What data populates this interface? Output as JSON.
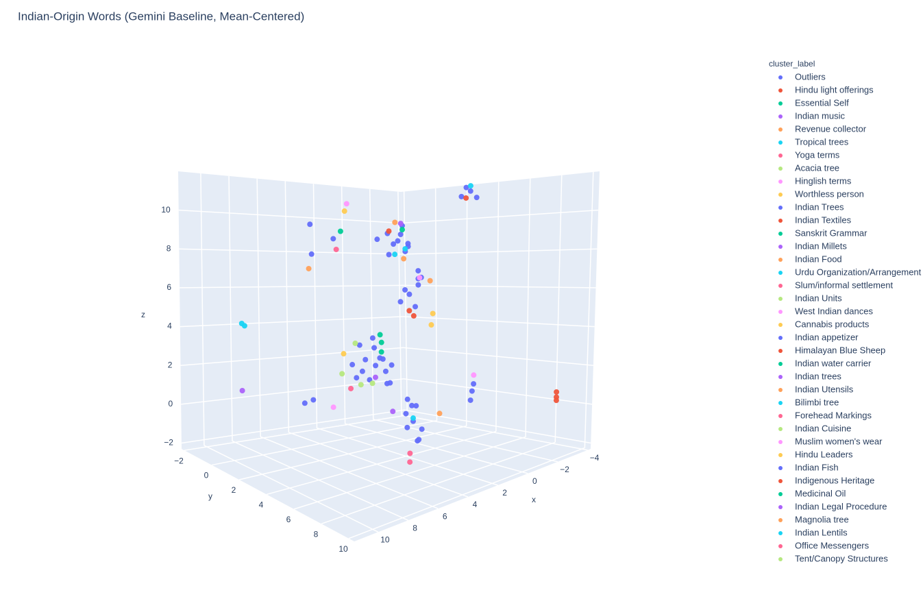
{
  "chart_data": {
    "type": "scatter3d",
    "title": "Indian-Origin Words (Gemini Baseline, Mean-Centered)",
    "xlabel": "x",
    "ylabel": "y",
    "zlabel": "z",
    "legend_title": "cluster_label",
    "legend_position": "right",
    "xlim": [
      -4.2,
      11.6
    ],
    "ylim": [
      -2.2,
      10.4
    ],
    "zlim": [
      -2.3,
      12
    ],
    "xticks": [
      {
        "value": -4,
        "label": "−4"
      },
      {
        "value": -2,
        "label": "−2"
      },
      0,
      2,
      4,
      6,
      8,
      10
    ],
    "yticks": [
      {
        "value": -2,
        "label": "−2"
      },
      0,
      2,
      4,
      6,
      8,
      10
    ],
    "zticks": [
      {
        "value": -2,
        "label": "−2"
      },
      0,
      2,
      4,
      6,
      8,
      10
    ],
    "grid": true,
    "series": [
      {
        "name": "Outliers",
        "color": "#636efa",
        "x": [
          2.1,
          2.5,
          1.7,
          2.8,
          1.5,
          2.3,
          3.0,
          1.9,
          2.6,
          1.2,
          1.3,
          1.0,
          1.6,
          0.8,
          1.4,
          0.6,
          1.8,
          4.2,
          4.6,
          3.8,
          5.0,
          4.4,
          3.5,
          4.8,
          5.3,
          3.9,
          4.1,
          5.6,
          3.2,
          4.7,
          4.3,
          2.9,
          3.2,
          2.6,
          3.0,
          2.7,
          3.4,
          2.5,
          3.1,
          -3.9,
          -3.6,
          -4.0,
          -3.5,
          -1.1,
          -0.8,
          -1.4,
          5.6,
          4.8,
          6.0,
          7.5,
          7.2
        ],
        "y": [
          3.5,
          3.2,
          3.8,
          3.9,
          3.1,
          4.2,
          3.0,
          3.6,
          3.4,
          3.3,
          3.5,
          3.8,
          3.2,
          3.6,
          4.0,
          3.4,
          3.7,
          4.1,
          3.8,
          4.4,
          4.0,
          4.6,
          3.9,
          4.3,
          3.6,
          3.7,
          4.8,
          4.2,
          4.2,
          3.5,
          4.0,
          5.4,
          5.2,
          5.7,
          5.9,
          5.1,
          5.5,
          5.3,
          5.8,
          2.5,
          2.2,
          2.8,
          2.6,
          5.4,
          5.6,
          5.2,
          1.0,
          1.8,
          1.5,
          2.5,
          2.8
        ],
        "z": [
          9.0,
          9.4,
          8.7,
          8.9,
          9.3,
          8.5,
          9.1,
          9.8,
          8.3,
          8.8,
          6.1,
          6.6,
          5.7,
          6.9,
          5.5,
          7.3,
          6.4,
          2.8,
          3.1,
          2.5,
          2.6,
          3.3,
          3.0,
          2.2,
          2.9,
          3.6,
          2.0,
          2.4,
          2.7,
          3.8,
          4.2,
          0.0,
          0.4,
          -0.4,
          -0.8,
          0.7,
          -0.2,
          -1.1,
          0.9,
          11.6,
          11.3,
          11.2,
          11.8,
          0.8,
          0.4,
          1.1,
          9.8,
          9.1,
          8.3,
          1.0,
          1.2
        ]
      },
      {
        "name": "Hindu light offerings",
        "color": "#EF553B",
        "x": [
          -3.7,
          -3.9,
          -3.5,
          1.2
        ],
        "y": [
          8.5,
          8.3,
          8.7,
          3.4
        ],
        "z": [
          0.3,
          0.5,
          0.2,
          5.2
        ]
      },
      {
        "name": "Essential Self",
        "color": "#00cc96",
        "x": [
          2.0,
          4.0
        ],
        "y": [
          3.7,
          4.3
        ],
        "z": [
          9.6,
          3.5
        ]
      },
      {
        "name": "Indian music",
        "color": "#ab63fa",
        "x": [
          9.7
        ],
        "y": [
          0.3
        ],
        "z": [
          1.3
        ]
      },
      {
        "name": "Revenue collector",
        "color": "#FFA15A",
        "x": [
          2.4,
          5.9
        ],
        "y": [
          3.6,
          1.2
        ],
        "z": [
          10.0,
          7.5
        ]
      },
      {
        "name": "Tropical trees",
        "color": "#19d3f3",
        "x": [
          9.7,
          9.6,
          -3.8
        ],
        "y": [
          0.3,
          0.4,
          2.6
        ],
        "z": [
          4.7,
          4.6,
          11.9
        ]
      },
      {
        "name": "Yoga terms",
        "color": "#FF6692",
        "x": [
          3.3
        ],
        "y": [
          5.6
        ],
        "z": [
          -1.5
        ]
      },
      {
        "name": "Acacia tree",
        "color": "#B6E880",
        "x": [
          4.9
        ],
        "y": [
          3.4
        ],
        "z": [
          3.9
        ]
      },
      {
        "name": "Hinglish terms",
        "color": "#FF97FF",
        "x": [
          3.0,
          6.5
        ],
        "y": [
          0.95,
          3.5
        ],
        "z": [
          10.9,
          0.9
        ]
      },
      {
        "name": "Worthless person",
        "color": "#FECB52",
        "x": [
          3.2,
          0.2
        ],
        "y": [
          1.0,
          4.0
        ],
        "z": [
          10.5,
          5.0
        ]
      },
      {
        "name": "Indian Trees",
        "color": "#636efa",
        "x": [
          0.9
        ],
        "y": [
          3.9
        ],
        "z": [
          7.0
        ]
      },
      {
        "name": "Indian Textiles",
        "color": "#EF553B",
        "x": [
          2.2
        ],
        "y": [
          3.0
        ],
        "z": [
          9.5
        ]
      },
      {
        "name": "Sanskrit Grammar",
        "color": "#00cc96",
        "x": [
          4.5
        ],
        "y": [
          2.0
        ],
        "z": [
          9.5
        ]
      },
      {
        "name": "Indian Millets",
        "color": "#ab63fa",
        "x": [
          1.7
        ],
        "y": [
          3.3
        ],
        "z": [
          9.9
        ]
      },
      {
        "name": "Indian Food",
        "color": "#FFA15A",
        "x": [
          0.5
        ],
        "y": [
          4.1
        ],
        "z": [
          6.8
        ]
      },
      {
        "name": "Urdu Organization/Arrangement",
        "color": "#19d3f3",
        "x": [
          2.0
        ],
        "y": [
          3.9
        ],
        "z": [
          8.6
        ]
      },
      {
        "name": "Slum/informal settlement",
        "color": "#FF6692",
        "x": [
          5.1
        ],
        "y": [
          2.3
        ],
        "z": [
          8.6
        ]
      },
      {
        "name": "Indian Units",
        "color": "#B6E880",
        "x": [
          6.2
        ],
        "y": [
          3.8
        ],
        "z": [
          2.6
        ]
      },
      {
        "name": "West Indian dances",
        "color": "#FF97FF",
        "x": [
          0.4
        ],
        "y": [
          3.3
        ],
        "z": [
          6.9
        ]
      },
      {
        "name": "Cannabis products",
        "color": "#FECB52",
        "x": [
          0.3
        ],
        "y": [
          4.0
        ],
        "z": [
          4.4
        ]
      },
      {
        "name": "Indian appetizer",
        "color": "#636efa",
        "x": [
          3.6
        ],
        "y": [
          4.5
        ],
        "z": [
          1.9
        ]
      },
      {
        "name": "Himalayan Blue Sheep",
        "color": "#EF553B",
        "x": [
          1.4
        ],
        "y": [
          3.9
        ],
        "z": [
          5.0
        ]
      },
      {
        "name": "Indian water carrier",
        "color": "#00cc96",
        "x": [
          3.7
        ],
        "y": [
          4.0
        ],
        "z": [
          3.9
        ]
      },
      {
        "name": "Indian trees",
        "color": "#ab63fa",
        "x": [
          4.5
        ],
        "y": [
          4.4
        ],
        "z": [
          2.3
        ]
      },
      {
        "name": "Indian Utensils",
        "color": "#FFA15A",
        "x": [
          1.5
        ],
        "y": [
          5.8
        ],
        "z": [
          0.2
        ]
      },
      {
        "name": "Bilimbi tree",
        "color": "#19d3f3",
        "x": [
          3.0
        ],
        "y": [
          5.5
        ],
        "z": [
          0.2
        ]
      },
      {
        "name": "Forehead Markings",
        "color": "#FF6692",
        "x": [
          5.4
        ],
        "y": [
          3.6
        ],
        "z": [
          1.7
        ]
      },
      {
        "name": "Indian Cuisine",
        "color": "#B6E880",
        "x": [
          5.0
        ],
        "y": [
          3.9
        ],
        "z": [
          1.9
        ]
      },
      {
        "name": "Muslim women's wear",
        "color": "#FF97FF",
        "x": [
          -1.0
        ],
        "y": [
          5.6
        ],
        "z": [
          1.7
        ]
      },
      {
        "name": "Hindu Leaders",
        "color": "#FECB52",
        "x": [
          5.5
        ],
        "y": [
          3.2
        ],
        "z": [
          3.4
        ]
      },
      {
        "name": "Indian Fish",
        "color": "#636efa",
        "x": [
          2.8
        ],
        "y": [
          4.9
        ],
        "z": [
          1.0
        ]
      },
      {
        "name": "Indigenous Heritage",
        "color": "#EF553B",
        "x": [
          -3.7
        ],
        "y": [
          2.4
        ],
        "z": [
          11.2
        ]
      },
      {
        "name": "Medicinal Oil",
        "color": "#00cc96",
        "x": [
          3.4
        ],
        "y": [
          3.6
        ],
        "z": [
          4.2
        ]
      },
      {
        "name": "Indian Legal Procedure",
        "color": "#ab63fa",
        "x": [
          3.9
        ],
        "y": [
          5.0
        ],
        "z": [
          0.6
        ]
      },
      {
        "name": "Magnolia tree",
        "color": "#FFA15A",
        "x": [
          2.2
        ],
        "y": [
          4.0
        ],
        "z": [
          8.1
        ]
      },
      {
        "name": "Indian Lentils",
        "color": "#19d3f3",
        "x": [
          2.3
        ],
        "y": [
          3.5
        ],
        "z": [
          8.3
        ]
      },
      {
        "name": "Office Messengers",
        "color": "#FF6692",
        "x": [
          3.6
        ],
        "y": [
          5.9
        ],
        "z": [
          -1.8
        ]
      },
      {
        "name": "Tent/Canopy Structures",
        "color": "#B6E880",
        "x": [
          4.9
        ],
        "y": [
          4.6
        ],
        "z": [
          2.1
        ]
      }
    ]
  }
}
